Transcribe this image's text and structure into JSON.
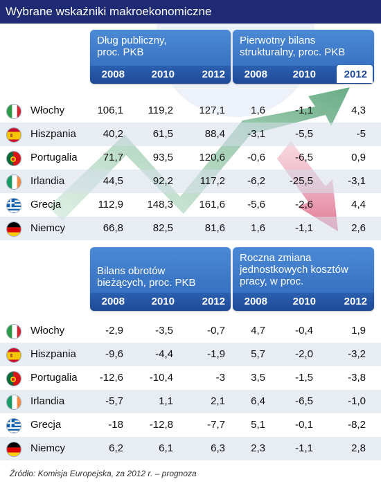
{
  "title": "Wybrane wskaźniki makroekonomiczne",
  "years": [
    "2008",
    "2010",
    "2012"
  ],
  "panels": {
    "dlug": {
      "title_line1": "Dług publiczny,",
      "title_line2": "proc. PKB"
    },
    "bilans_strukt": {
      "title_line1": "Pierwotny bilans",
      "title_line2": "strukturalny, proc. PKB"
    },
    "obroty": {
      "title_line1": "Bilans obrotów",
      "title_line2": "bieżących, proc. PKB"
    },
    "koszty": {
      "title_line1": "Roczna zmiana",
      "title_line2": "jednostkowych kosztów",
      "title_line3": "pracy, w proc."
    }
  },
  "countries": [
    {
      "name": "Włochy",
      "flag": "it-flag-icon"
    },
    {
      "name": "Hiszpania",
      "flag": "es-flag-icon"
    },
    {
      "name": "Portugalia",
      "flag": "pt-flag-icon"
    },
    {
      "name": "Irlandia",
      "flag": "ie-flag-icon"
    },
    {
      "name": "Grecja",
      "flag": "gr-flag-icon"
    },
    {
      "name": "Niemcy",
      "flag": "de-flag-icon"
    }
  ],
  "table_top": [
    [
      "106,1",
      "119,2",
      "127,1",
      "1,6",
      "-1,1",
      "4,3"
    ],
    [
      "40,2",
      "61,5",
      "88,4",
      "-3,1",
      "-5,5",
      "-5"
    ],
    [
      "71,7",
      "93,5",
      "120,6",
      "-0,6",
      "-6,5",
      "0,9"
    ],
    [
      "44,5",
      "92,2",
      "117,2",
      "-6,2",
      "-25,5",
      "-3,1"
    ],
    [
      "112,9",
      "148,3",
      "161,6",
      "-5,6",
      "-2,6",
      "4,4"
    ],
    [
      "66,8",
      "82,5",
      "81,6",
      "1,6",
      "-1,1",
      "2,6"
    ]
  ],
  "table_bottom": [
    [
      "-2,9",
      "-3,5",
      "-0,7",
      "4,7",
      "-0,4",
      "1,9"
    ],
    [
      "-9,6",
      "-4,4",
      "-1,9",
      "5,7",
      "-2,0",
      "-3,2"
    ],
    [
      "-12,6",
      "-10,4",
      "-3",
      "3,5",
      "-1,5",
      "-3,8"
    ],
    [
      "-5,7",
      "1,1",
      "2,1",
      "6,4",
      "-6,5",
      "-1,0"
    ],
    [
      "-18",
      "-12,8",
      "-7,7",
      "5,1",
      "-0,1",
      "-8,2"
    ],
    [
      "6,2",
      "6,1",
      "6,3",
      "2,3",
      "-1,1",
      "2,8"
    ]
  ],
  "source": "Źródło: Komisja Europejska, za 2012 r. – prognoza",
  "colors": {
    "title_bg": "#1e2a73",
    "header_blue": "#2f66b8",
    "arrow_green": "#5aa67a",
    "arrow_pink": "#d9708a"
  }
}
